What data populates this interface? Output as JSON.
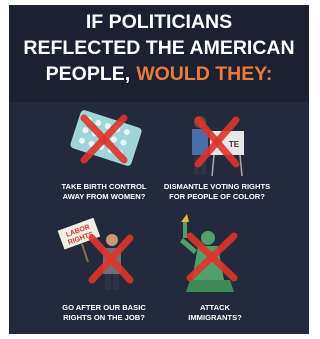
{
  "header": {
    "lines": [
      "IF POLITICIANS",
      "REFLECTED THE AMERICAN",
      "PEOPLE,"
    ],
    "highlight": "WOULD THEY:"
  },
  "items": [
    {
      "caption": [
        "TAKE BIRTH CONTROL",
        "AWAY FROM WOMEN?"
      ]
    },
    {
      "caption": [
        "DISMANTLE VOTING RIGHTS",
        "FOR PEOPLE OF COLOR?"
      ],
      "sign": "TE"
    },
    {
      "caption": [
        "GO AFTER OUR BASIC",
        "RIGHTS ON THE JOB?"
      ],
      "sign": [
        "LABOR",
        "RIGHTS"
      ]
    },
    {
      "caption": [
        "ATTACK",
        "IMMIGRANTS?"
      ]
    }
  ]
}
